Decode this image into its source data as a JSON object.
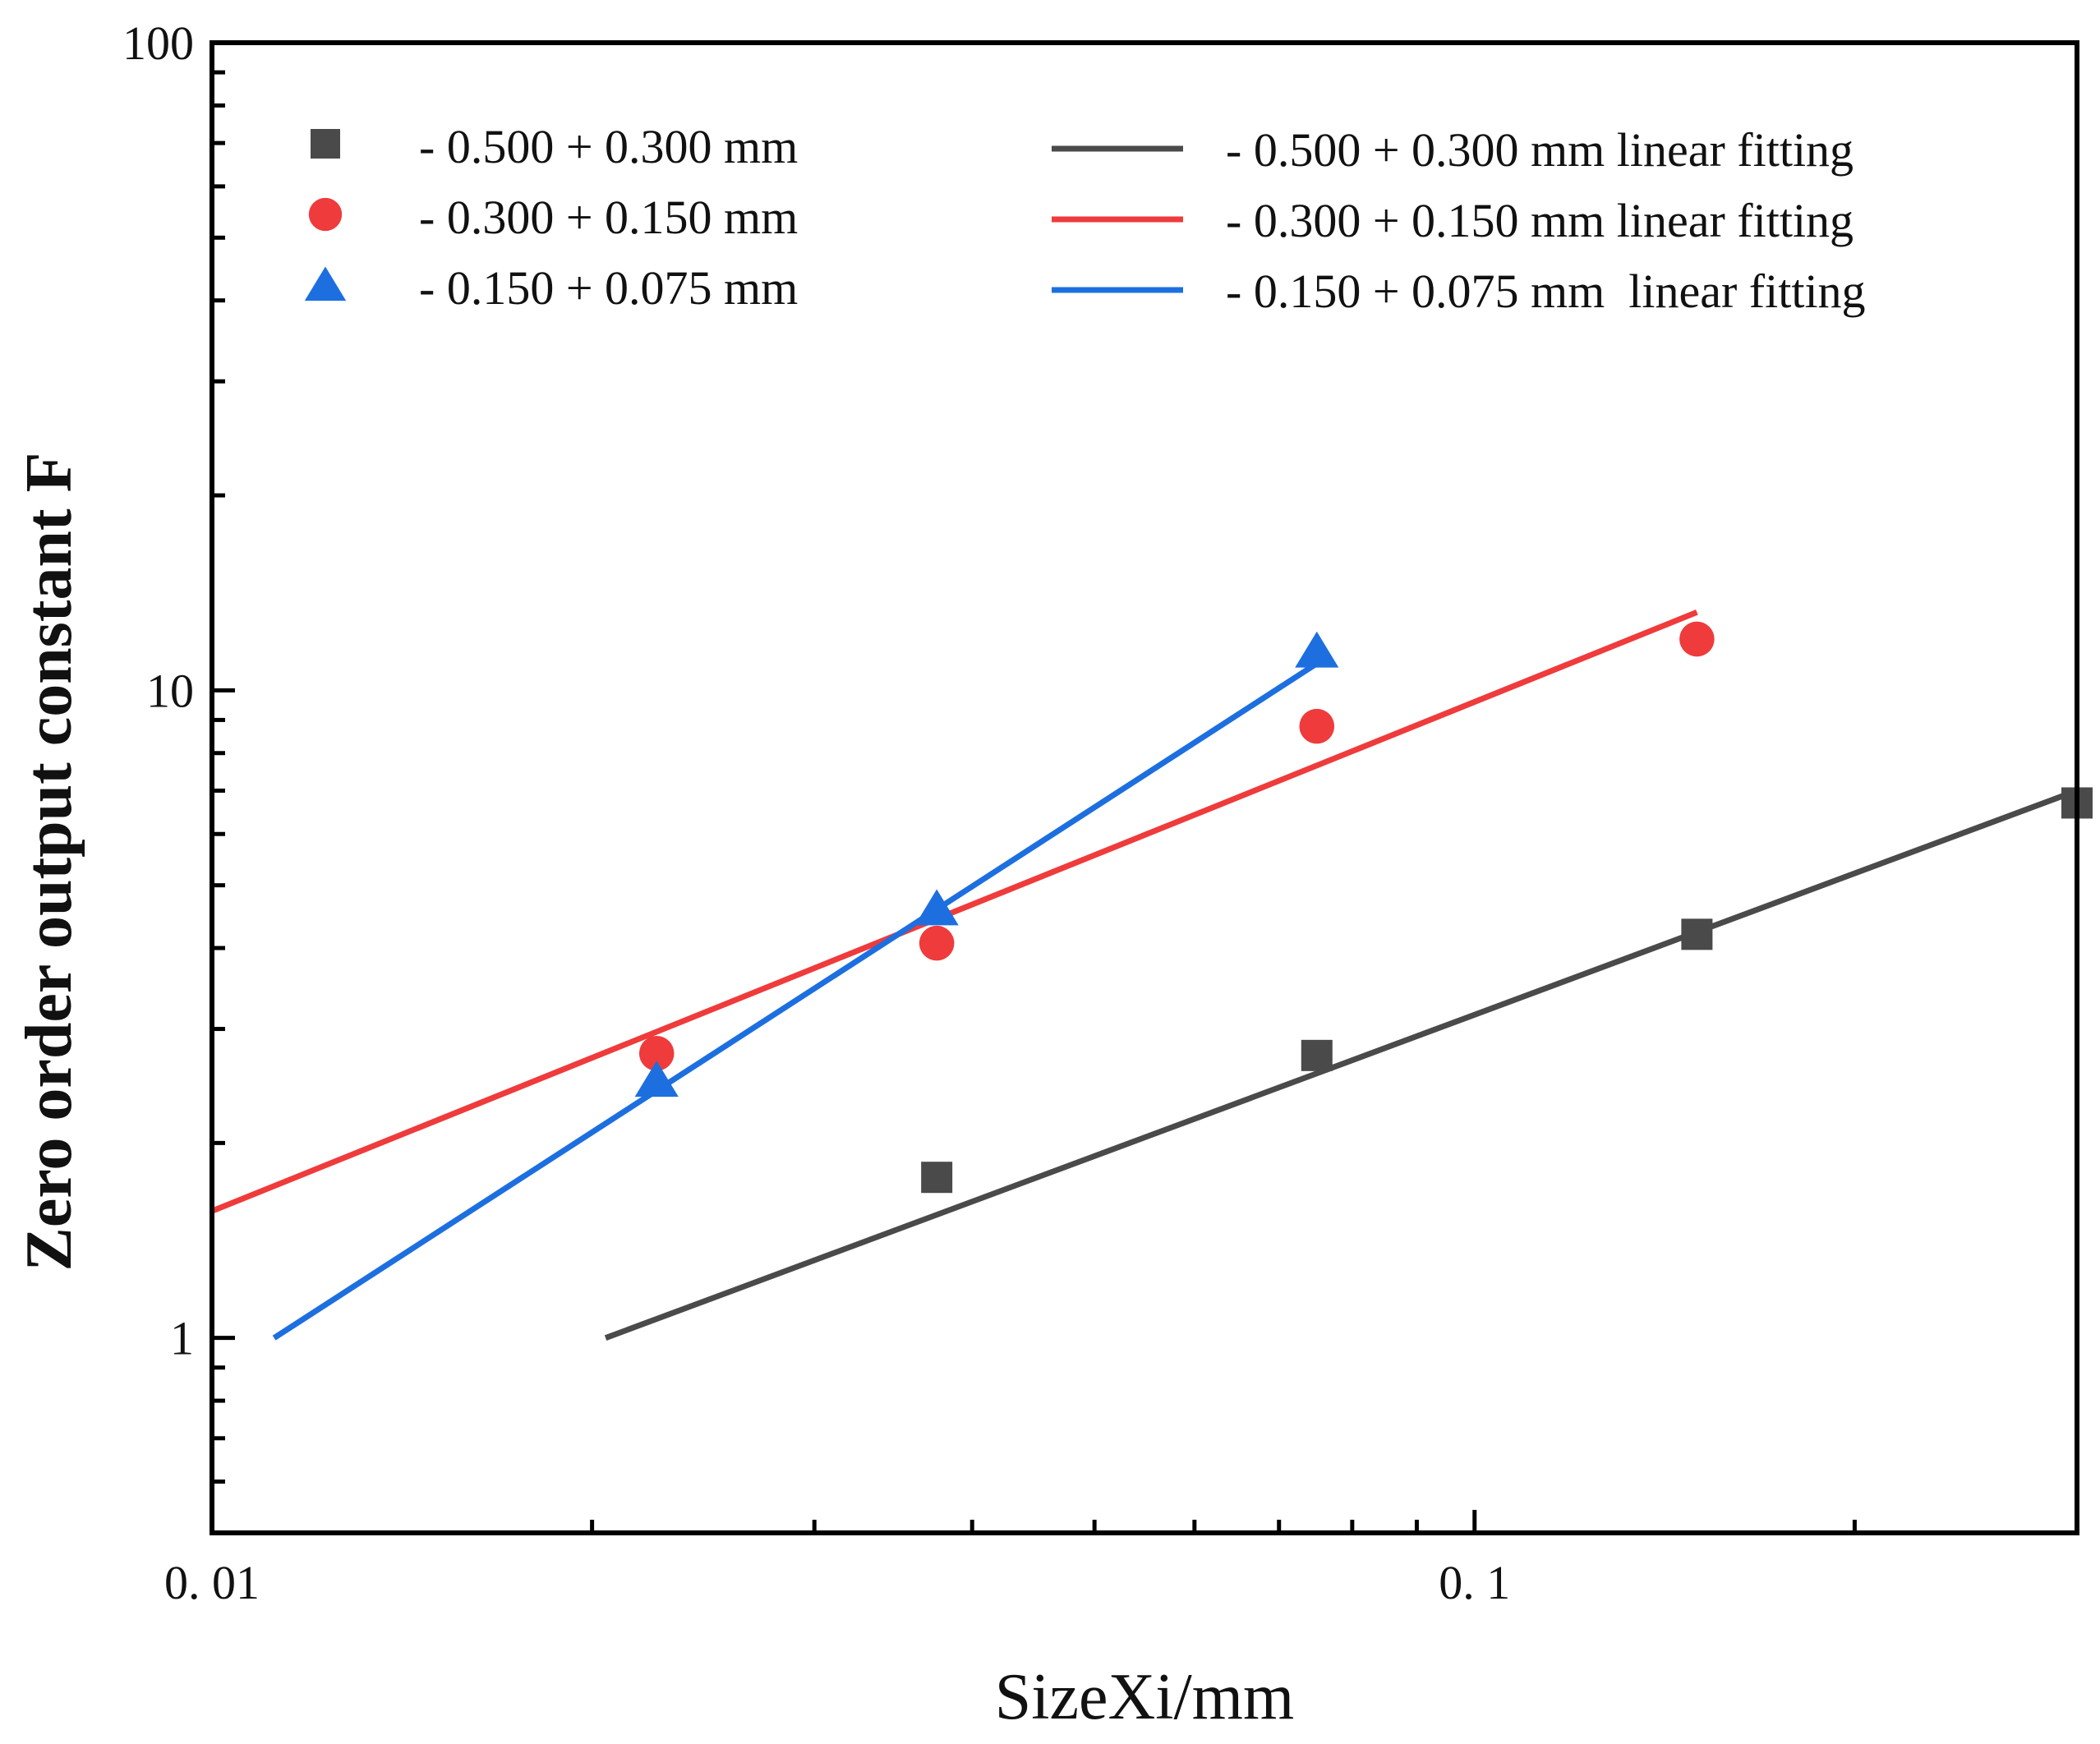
{
  "chart_data": {
    "type": "scatter",
    "title": "",
    "xlabel": "SizeXi/mm",
    "ylabel": "Zero order output constant F",
    "xscale": "log",
    "yscale": "log",
    "xlim": [
      0.01,
      0.3
    ],
    "ylim": [
      0.5,
      100
    ],
    "x_ticks": [
      {
        "value": 0.01,
        "label": "0. 01"
      },
      {
        "value": 0.1,
        "label": "0. 1"
      }
    ],
    "y_ticks": [
      {
        "value": 1,
        "label": "1"
      },
      {
        "value": 10,
        "label": "10"
      },
      {
        "value": 100,
        "label": "100"
      }
    ],
    "legend_position": "top",
    "series": [
      {
        "name": "- 0.500 + 0.300 mm",
        "marker": "square",
        "color": "#4a4a4a",
        "points": [
          [
            0.0375,
            1.77
          ],
          [
            0.075,
            2.73
          ],
          [
            0.15,
            4.2
          ],
          [
            0.3,
            6.7
          ]
        ]
      },
      {
        "name": "- 0.300 + 0.150 mm",
        "marker": "circle",
        "color": "#ef3b3b",
        "points": [
          [
            0.0225,
            2.75
          ],
          [
            0.0375,
            4.07
          ],
          [
            0.075,
            8.8
          ],
          [
            0.15,
            12.0
          ]
        ]
      },
      {
        "name": "- 0.150 + 0.075 mm",
        "marker": "triangle",
        "color": "#1d6fe0",
        "points": [
          [
            0.0225,
            2.5
          ],
          [
            0.0375,
            4.6
          ],
          [
            0.075,
            11.5
          ]
        ]
      }
    ],
    "fits": [
      {
        "name": "- 0.500 + 0.300 mm linear fitting",
        "color": "#4a4a4a",
        "from": [
          0.0205,
          1.0
        ],
        "to": [
          0.3,
          7.0
        ]
      },
      {
        "name": "- 0.300 + 0.150 mm linear fitting",
        "color": "#ef3b3b",
        "from": [
          0.01,
          1.57
        ],
        "to": [
          0.15,
          13.2
        ]
      },
      {
        "name": "- 0.150 + 0.075 mm  linear fitting",
        "color": "#1d6fe0",
        "from": [
          0.0112,
          1.0
        ],
        "to": [
          0.075,
          11.0
        ]
      }
    ]
  }
}
